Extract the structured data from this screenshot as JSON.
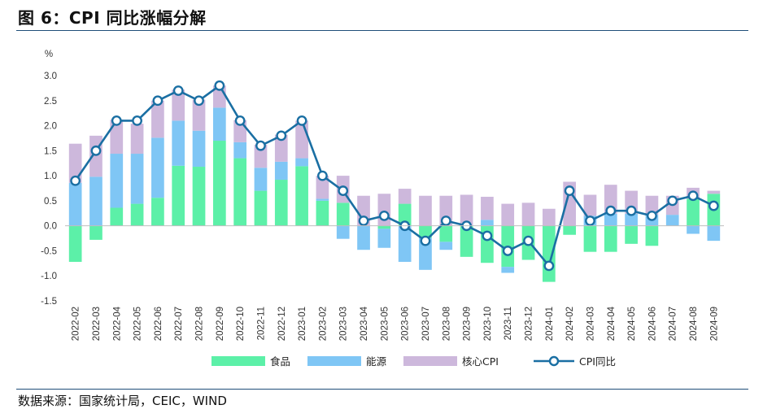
{
  "title": "图 6：CPI 同比涨幅分解",
  "source": "数据来源：国家统计局，CEIC，WIND",
  "chart_data": {
    "type": "bar",
    "stacked": true,
    "ylabel": "%",
    "ylim": [
      -1.5,
      3.0
    ],
    "yticks": [
      "3.0",
      "2.5",
      "2.0",
      "1.5",
      "1.0",
      "0.5",
      "0.0",
      "-0.5",
      "-1.0",
      "-1.5"
    ],
    "ytick_values": [
      3.0,
      2.5,
      2.0,
      1.5,
      1.0,
      0.5,
      0.0,
      -0.5,
      -1.0,
      -1.5
    ],
    "categories": [
      "2022-02",
      "2022-03",
      "2022-04",
      "2022-05",
      "2022-06",
      "2022-07",
      "2022-08",
      "2022-09",
      "2022-10",
      "2022-11",
      "2022-12",
      "2023-01",
      "2023-02",
      "2023-03",
      "2023-04",
      "2023-05",
      "2023-06",
      "2023-07",
      "2023-08",
      "2023-09",
      "2023-10",
      "2023-11",
      "2023-12",
      "2024-01",
      "2024-02",
      "2024-03",
      "2024-04",
      "2024-05",
      "2024-06",
      "2024-07",
      "2024-08",
      "2024-09"
    ],
    "series": [
      {
        "name": "食品",
        "kind": "bar",
        "color": "#5cf0a8",
        "values": [
          -0.72,
          -0.28,
          0.36,
          0.44,
          0.56,
          1.2,
          1.18,
          1.7,
          1.35,
          0.7,
          0.92,
          1.19,
          0.5,
          0.46,
          0.0,
          -0.06,
          0.44,
          -0.24,
          -0.32,
          -0.62,
          -0.74,
          -0.82,
          -0.68,
          -1.12,
          -0.18,
          -0.52,
          -0.52,
          -0.36,
          -0.4,
          0.0,
          0.54,
          0.64
        ]
      },
      {
        "name": "能源",
        "kind": "bar",
        "color": "#7fc6f5",
        "values": [
          0.86,
          0.98,
          1.08,
          1.0,
          1.2,
          0.9,
          0.72,
          0.66,
          0.32,
          0.46,
          0.36,
          0.16,
          0.04,
          -0.26,
          -0.48,
          -0.38,
          -0.72,
          -0.64,
          -0.16,
          0.0,
          0.12,
          -0.12,
          0.0,
          0.0,
          0.0,
          0.2,
          0.24,
          0.24,
          0.22,
          0.22,
          -0.16,
          -0.3
        ]
      },
      {
        "name": "核心CPI",
        "kind": "bar",
        "color": "#cdb8dc",
        "values": [
          0.78,
          0.82,
          0.68,
          0.6,
          0.74,
          0.62,
          0.62,
          0.44,
          0.44,
          0.46,
          0.54,
          0.75,
          0.46,
          0.54,
          0.6,
          0.64,
          0.3,
          0.6,
          0.6,
          0.62,
          0.46,
          0.44,
          0.46,
          0.34,
          0.88,
          0.42,
          0.58,
          0.46,
          0.38,
          0.38,
          0.22,
          0.06
        ]
      },
      {
        "name": "CPI同比",
        "kind": "line",
        "color": "#1a6fa3",
        "values": [
          0.9,
          1.5,
          2.1,
          2.1,
          2.5,
          2.7,
          2.5,
          2.8,
          2.1,
          1.6,
          1.8,
          2.1,
          1.0,
          0.7,
          0.1,
          0.2,
          0.0,
          -0.3,
          0.1,
          0.0,
          -0.2,
          -0.5,
          -0.3,
          -0.8,
          0.7,
          0.1,
          0.3,
          0.3,
          0.2,
          0.5,
          0.6,
          0.4
        ]
      }
    ],
    "legend_position": "bottom"
  }
}
